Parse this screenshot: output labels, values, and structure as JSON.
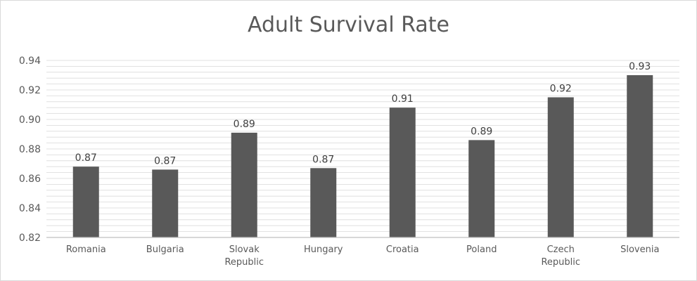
{
  "chart_data": {
    "type": "bar",
    "title": "Adult Survival Rate",
    "categories": [
      "Romania",
      "Bulgaria",
      "Slovak Republic",
      "Hungary",
      "Croatia",
      "Poland",
      "Czech Republic",
      "Slovenia"
    ],
    "category_lines": [
      [
        "Romania"
      ],
      [
        "Bulgaria"
      ],
      [
        "Slovak",
        "Republic"
      ],
      [
        "Hungary"
      ],
      [
        "Croatia"
      ],
      [
        "Poland"
      ],
      [
        "Czech",
        "Republic"
      ],
      [
        "Slovenia"
      ]
    ],
    "values": [
      0.868,
      0.866,
      0.891,
      0.867,
      0.908,
      0.886,
      0.915,
      0.93
    ],
    "data_labels": [
      "0.87",
      "0.87",
      "0.89",
      "0.87",
      "0.91",
      "0.89",
      "0.92",
      "0.93"
    ],
    "yticks": [
      "0.82",
      "0.84",
      "0.86",
      "0.88",
      "0.90",
      "0.92",
      "0.94"
    ],
    "ylim": [
      0.82,
      0.94
    ],
    "minor_grid_step": 0.004,
    "bar_color": "#595959",
    "grid_color": "#d9d9d9",
    "axis_color": "#bfbfbf",
    "legend": "none"
  }
}
